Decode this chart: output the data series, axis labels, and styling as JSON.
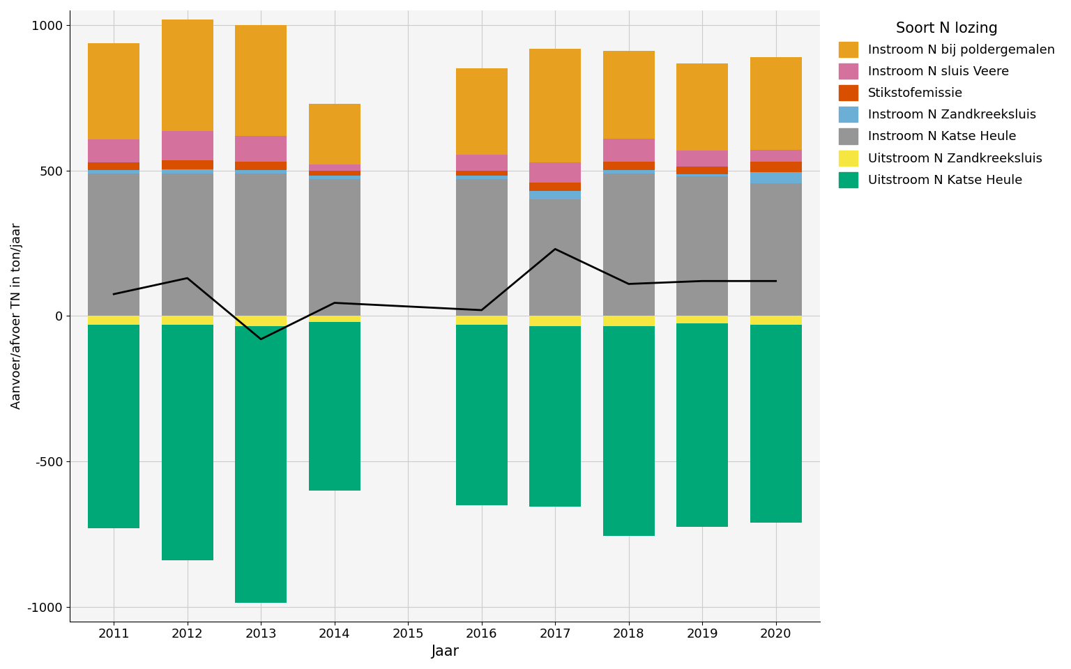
{
  "years": [
    2011,
    2012,
    2013,
    2014,
    2016,
    2017,
    2018,
    2019,
    2020
  ],
  "positive_components": {
    "Instroom N Katse Heule": [
      490,
      490,
      490,
      470,
      470,
      400,
      490,
      480,
      455
    ],
    "Instroom N Zandkreeksluis": [
      12,
      15,
      12,
      12,
      12,
      30,
      12,
      8,
      40
    ],
    "Stikstofemissie": [
      25,
      30,
      28,
      18,
      18,
      28,
      28,
      25,
      35
    ],
    "Instroom N sluis Veere": [
      80,
      100,
      90,
      20,
      55,
      70,
      80,
      55,
      40
    ],
    "Instroom N bij poldergemalen": [
      330,
      385,
      380,
      210,
      295,
      390,
      300,
      300,
      320
    ]
  },
  "negative_components": {
    "Uitstroom N Zandkreeksluis": [
      -30,
      -30,
      -35,
      -20,
      -30,
      -35,
      -35,
      -25,
      -30
    ],
    "Uitstroom N Katse Heule": [
      -700,
      -810,
      -950,
      -580,
      -620,
      -620,
      -720,
      -700,
      -680
    ]
  },
  "net_line": [
    75,
    130,
    -80,
    45,
    20,
    230,
    110,
    120,
    120
  ],
  "colors": {
    "Instroom N Katse Heule": "#969696",
    "Instroom N Zandkreeksluis": "#6BAED6",
    "Stikstofemissie": "#D94F00",
    "Instroom N sluis Veere": "#D4719D",
    "Instroom N bij poldergemalen": "#E8A020",
    "Uitstroom N Zandkreeksluis": "#F5E642",
    "Uitstroom N Katse Heule": "#00A878"
  },
  "xlabel": "Jaar",
  "ylabel": "Aanvoer/afvoer TN in ton/jaar",
  "ylim": [
    -1050,
    1050
  ],
  "yticks": [
    -1000,
    -500,
    0,
    500,
    1000
  ],
  "legend_title": "Soort N lozing",
  "background_color": "#FFFFFF",
  "plot_bg_color": "#F5F5F5",
  "grid_color": "#CCCCCC",
  "bar_width": 0.7,
  "line_color": "black",
  "line_width": 2
}
